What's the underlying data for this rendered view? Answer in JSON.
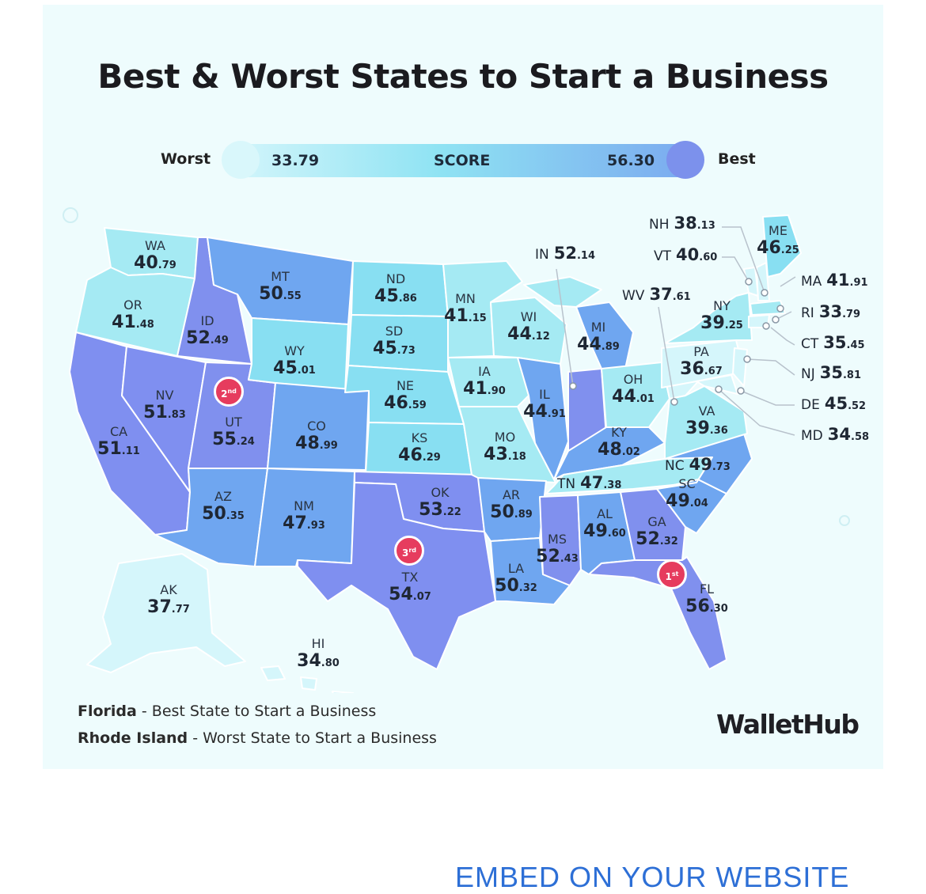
{
  "title": "Best & Worst States to Start a Business",
  "legend": {
    "low_label": "Worst",
    "high_label": "Best",
    "min_value": "33.79",
    "max_value": "56.30",
    "center_label": "SCORE",
    "colors": {
      "low": "#d5f6fb",
      "mid": "#8fe3f3",
      "high": "#7c91ec"
    }
  },
  "states": [
    {
      "abbr": "WA",
      "int": "40",
      "dec": ".79"
    },
    {
      "abbr": "OR",
      "int": "41",
      "dec": ".48"
    },
    {
      "abbr": "CA",
      "int": "51",
      "dec": ".11"
    },
    {
      "abbr": "NV",
      "int": "51",
      "dec": ".83"
    },
    {
      "abbr": "ID",
      "int": "52",
      "dec": ".49"
    },
    {
      "abbr": "UT",
      "int": "55",
      "dec": ".24"
    },
    {
      "abbr": "AZ",
      "int": "50",
      "dec": ".35"
    },
    {
      "abbr": "MT",
      "int": "50",
      "dec": ".55"
    },
    {
      "abbr": "WY",
      "int": "45",
      "dec": ".01"
    },
    {
      "abbr": "CO",
      "int": "48",
      "dec": ".99"
    },
    {
      "abbr": "NM",
      "int": "47",
      "dec": ".93"
    },
    {
      "abbr": "ND",
      "int": "45",
      "dec": ".86"
    },
    {
      "abbr": "SD",
      "int": "45",
      "dec": ".73"
    },
    {
      "abbr": "NE",
      "int": "46",
      "dec": ".59"
    },
    {
      "abbr": "KS",
      "int": "46",
      "dec": ".29"
    },
    {
      "abbr": "OK",
      "int": "53",
      "dec": ".22"
    },
    {
      "abbr": "TX",
      "int": "54",
      "dec": ".07"
    },
    {
      "abbr": "MN",
      "int": "41",
      "dec": ".15"
    },
    {
      "abbr": "IA",
      "int": "41",
      "dec": ".90"
    },
    {
      "abbr": "MO",
      "int": "43",
      "dec": ".18"
    },
    {
      "abbr": "AR",
      "int": "50",
      "dec": ".89"
    },
    {
      "abbr": "LA",
      "int": "50",
      "dec": ".32"
    },
    {
      "abbr": "WI",
      "int": "44",
      "dec": ".12"
    },
    {
      "abbr": "IL",
      "int": "44",
      "dec": ".91"
    },
    {
      "abbr": "MI",
      "int": "44",
      "dec": ".89"
    },
    {
      "abbr": "OH",
      "int": "44",
      "dec": ".01"
    },
    {
      "abbr": "KY",
      "int": "48",
      "dec": ".02"
    },
    {
      "abbr": "TN",
      "int": "47",
      "dec": ".38"
    },
    {
      "abbr": "MS",
      "int": "52",
      "dec": ".43"
    },
    {
      "abbr": "AL",
      "int": "49",
      "dec": ".60"
    },
    {
      "abbr": "GA",
      "int": "52",
      "dec": ".32"
    },
    {
      "abbr": "FL",
      "int": "56",
      "dec": ".30"
    },
    {
      "abbr": "SC",
      "int": "49",
      "dec": ".04"
    },
    {
      "abbr": "NC",
      "int": "49",
      "dec": ".73"
    },
    {
      "abbr": "VA",
      "int": "39",
      "dec": ".36"
    },
    {
      "abbr": "PA",
      "int": "36",
      "dec": ".67"
    },
    {
      "abbr": "NY",
      "int": "39",
      "dec": ".25"
    },
    {
      "abbr": "ME",
      "int": "46",
      "dec": ".25"
    },
    {
      "abbr": "AK",
      "int": "37",
      "dec": ".77"
    },
    {
      "abbr": "HI",
      "int": "34",
      "dec": ".80"
    }
  ],
  "callouts": [
    {
      "abbr": "IN",
      "int": "52",
      "dec": ".14"
    },
    {
      "abbr": "WV",
      "int": "37",
      "dec": ".61"
    },
    {
      "abbr": "NH",
      "int": "38",
      "dec": ".13"
    },
    {
      "abbr": "VT",
      "int": "40",
      "dec": ".60"
    },
    {
      "abbr": "MA",
      "int": "41",
      "dec": ".91"
    },
    {
      "abbr": "RI",
      "int": "33",
      "dec": ".79"
    },
    {
      "abbr": "CT",
      "int": "35",
      "dec": ".45"
    },
    {
      "abbr": "NJ",
      "int": "35",
      "dec": ".81"
    },
    {
      "abbr": "DE",
      "int": "45",
      "dec": ".52"
    },
    {
      "abbr": "MD",
      "int": "34",
      "dec": ".58"
    }
  ],
  "rank_badges": [
    {
      "num": "1",
      "suffix": "st",
      "state": "FL"
    },
    {
      "num": "2",
      "suffix": "nd",
      "state": "UT"
    },
    {
      "num": "3",
      "suffix": "rd",
      "state": "TX"
    }
  ],
  "notes": [
    {
      "state": "Florida",
      "text": " - Best State to Start a Business"
    },
    {
      "state": "Rhode Island",
      "text": " - Worst State to Start a Business"
    }
  ],
  "logo": "WalletHub",
  "embed_link": "EMBED ON YOUR WEBSITE"
}
